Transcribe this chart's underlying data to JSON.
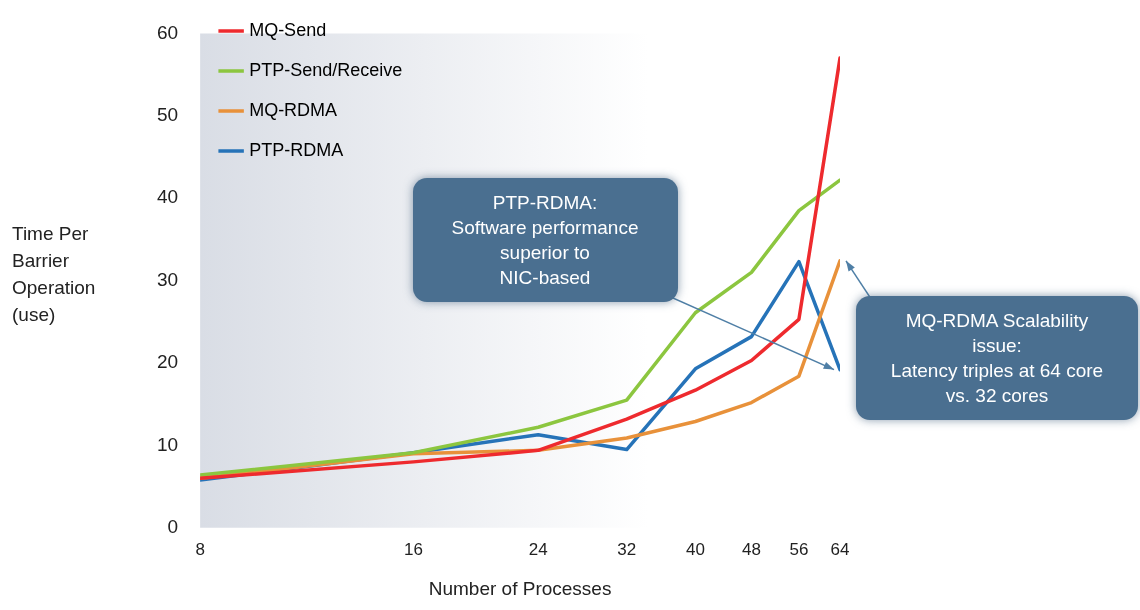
{
  "chart_data": {
    "type": "line",
    "xlabel": "Number of Processes",
    "ylabel": "Time Per Barrier Operation (use)",
    "x": [
      8,
      16,
      24,
      32,
      40,
      48,
      56,
      64
    ],
    "log": "x",
    "xlim": [
      8,
      64
    ],
    "xticks": [
      8,
      16,
      24,
      32,
      40,
      48,
      56,
      64
    ],
    "ylim": [
      0,
      60
    ],
    "yticks": [
      0,
      10,
      20,
      30,
      40,
      50,
      60
    ],
    "grid": false,
    "legend": "top left",
    "marker": "none",
    "line_style": "solid",
    "series": [
      {
        "name": "MQ-Send",
        "color": "#ee2a2e",
        "values": [
          6.0,
          8.0,
          9.4,
          13.2,
          16.7,
          20.3,
          25.3,
          57
        ]
      },
      {
        "name": "PTP-Send/Receive",
        "color": "#8cc63f",
        "values": [
          6.4,
          9.1,
          12.2,
          15.5,
          26.1,
          31,
          38.5,
          42.2
        ]
      },
      {
        "name": "MQ-RDMA",
        "color": "#e8913a",
        "values": [
          6.0,
          9.0,
          9.4,
          10.9,
          12.9,
          15.2,
          18.4,
          32.4
        ]
      },
      {
        "name": "PTP-RDMA",
        "color": "#2673b8",
        "values": [
          5.8,
          9.1,
          11.3,
          9.5,
          19.3,
          23.2,
          32.3,
          19.2
        ]
      }
    ],
    "annotations": [
      {
        "text": "PTP-RDMA:\nSoftware performance\nsuperior to\nNIC-based",
        "x": 64,
        "y": 19.2
      },
      {
        "text": "MQ-RDMA Scalability\nissue:\nLatency triples at 64 core\nvs. 32 cores",
        "x": 64,
        "y": 32.4
      }
    ]
  }
}
